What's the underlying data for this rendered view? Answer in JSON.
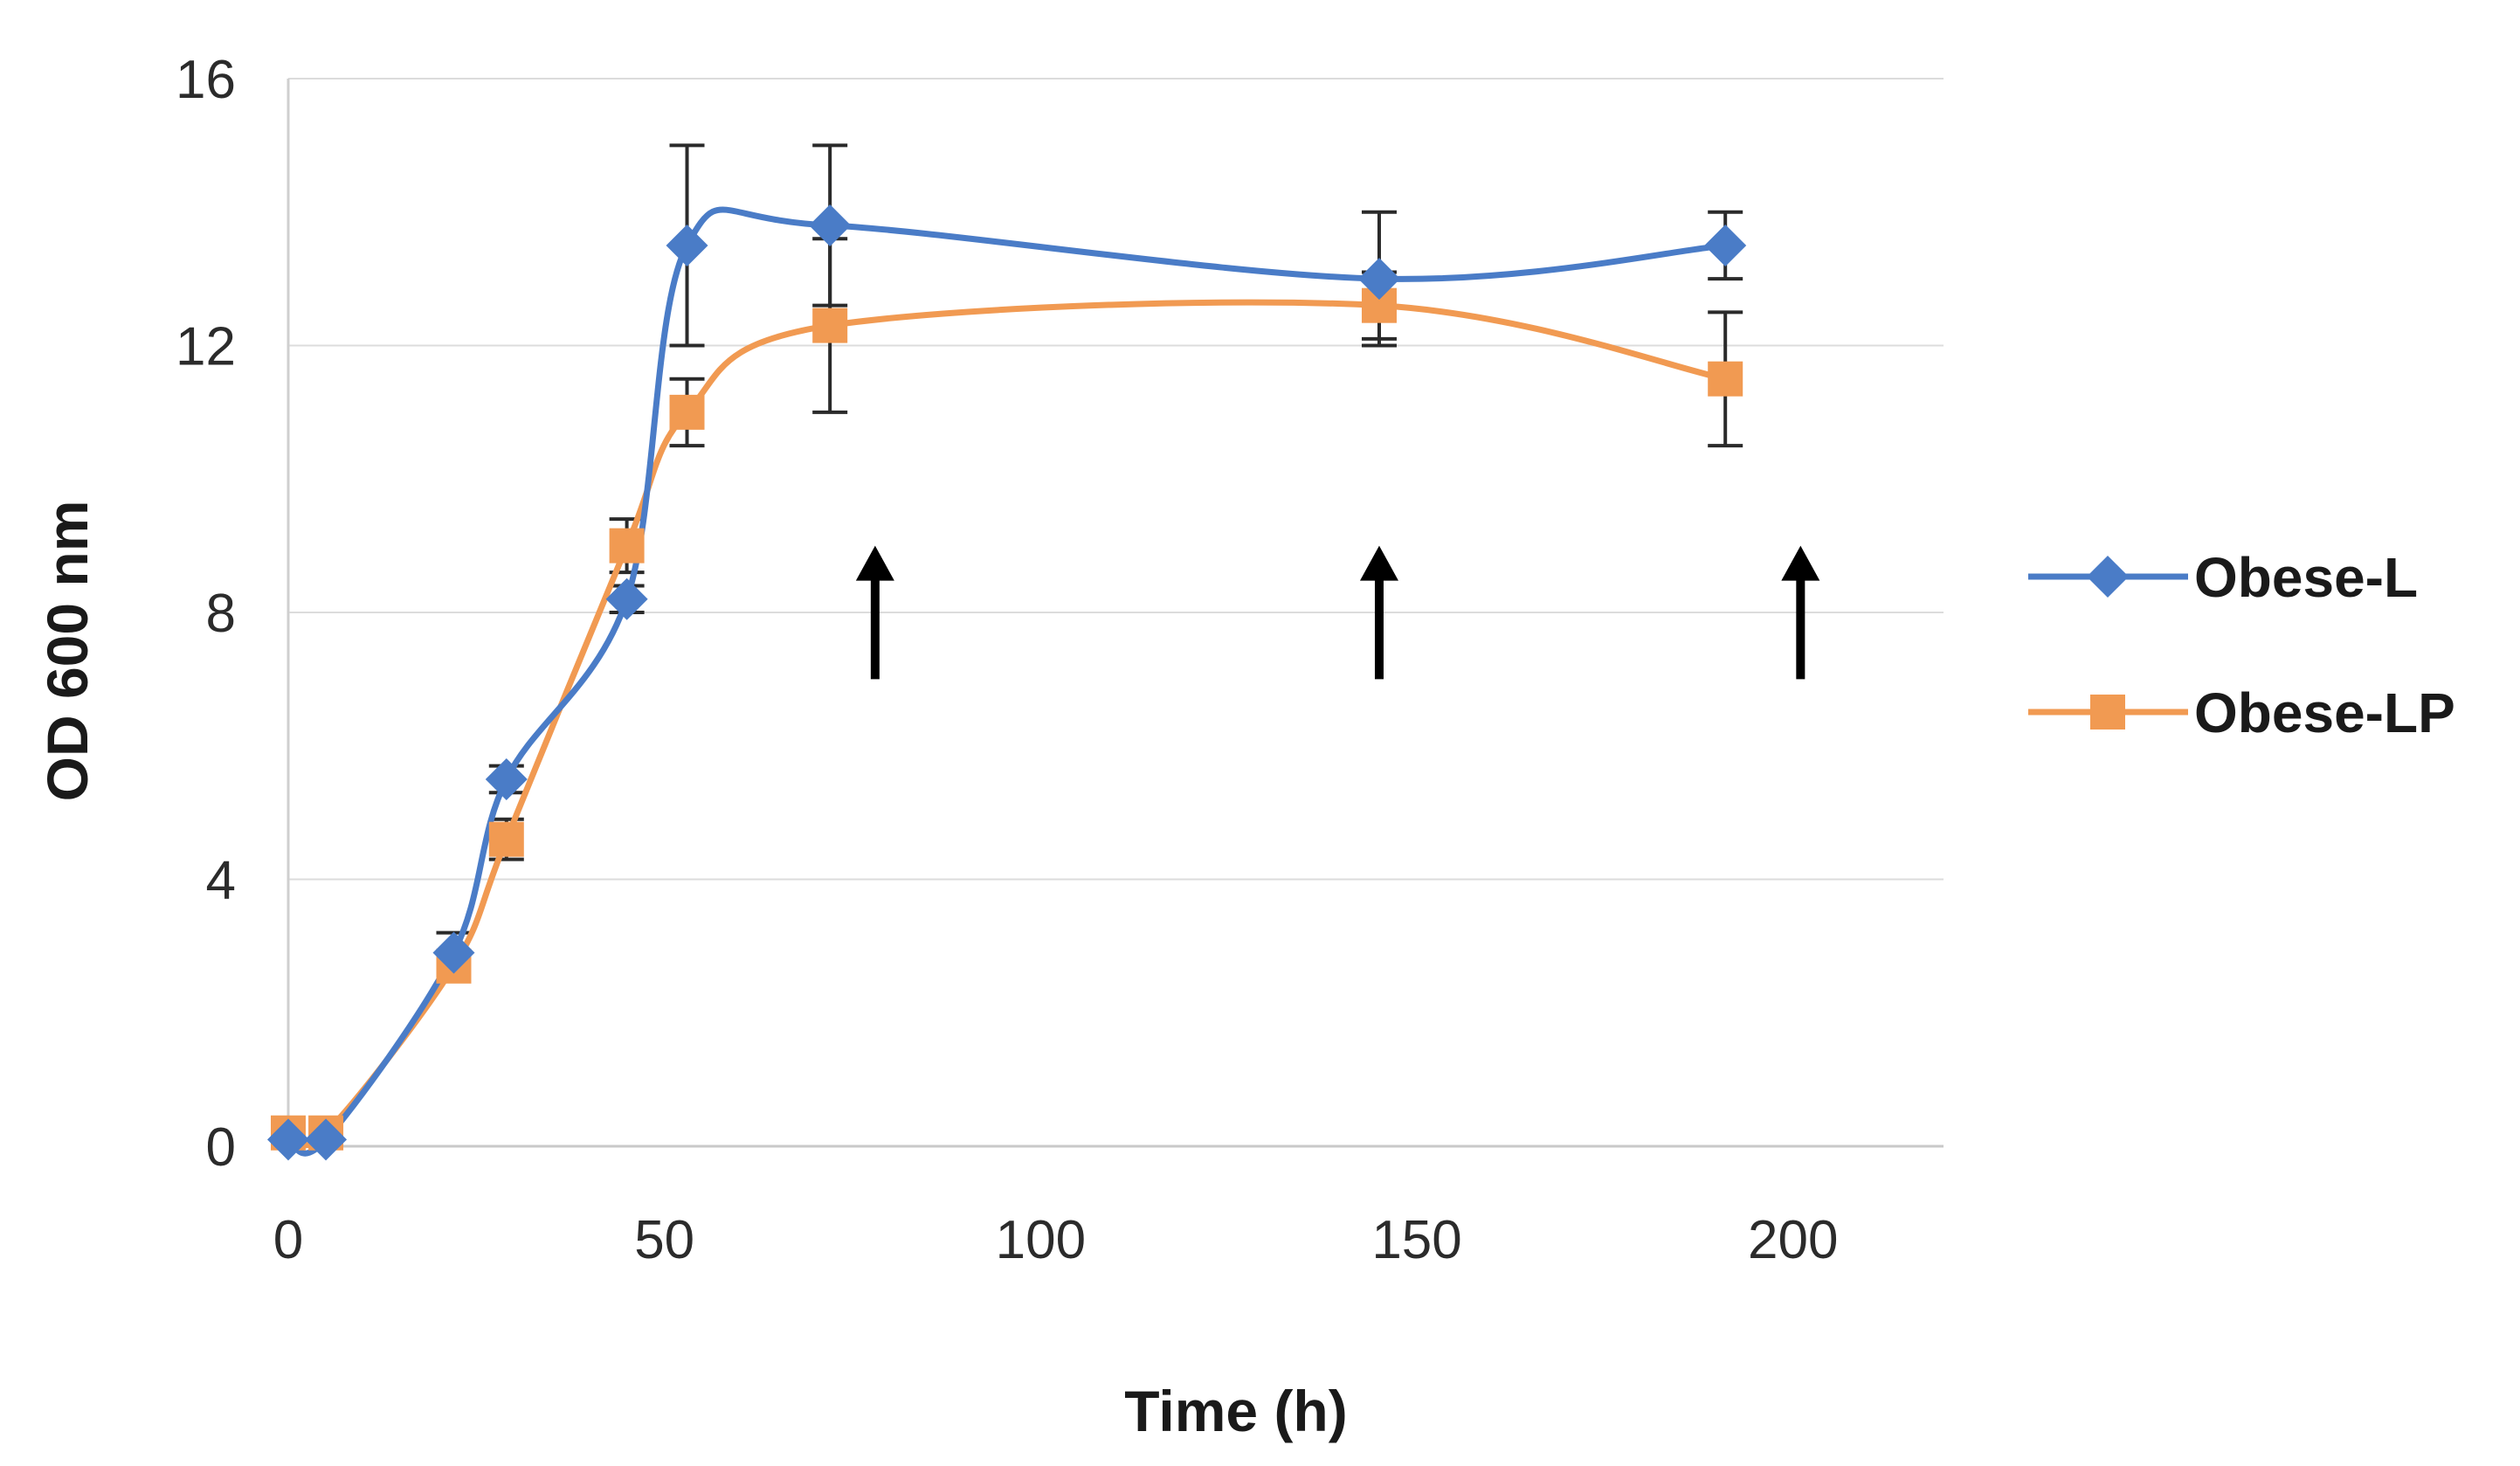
{
  "chart_data": {
    "type": "line",
    "title": "",
    "xlabel": "Time (h)",
    "ylabel": "OD 600 nm",
    "xlim": [
      0,
      220
    ],
    "ylim": [
      0,
      16
    ],
    "x_ticks": [
      0,
      50,
      100,
      150,
      200
    ],
    "y_ticks": [
      0,
      4,
      8,
      12,
      16
    ],
    "grid": true,
    "smooth": true,
    "legend_position": "right",
    "series": [
      {
        "name": "Obese-L",
        "color": "#4a7cc7",
        "marker": "diamond",
        "x": [
          0,
          5,
          22,
          29,
          45,
          53,
          72,
          145,
          191
        ],
        "y": [
          0.1,
          0.1,
          2.9,
          5.5,
          8.2,
          13.5,
          13.8,
          13.0,
          13.5
        ],
        "error": [
          0,
          0,
          0.3,
          0.2,
          0.2,
          1.5,
          1.2,
          1.0,
          0.5
        ]
      },
      {
        "name": "Obese-LP",
        "color": "#f19a52",
        "marker": "square",
        "x": [
          0,
          5,
          22,
          29,
          45,
          53,
          72,
          145,
          191
        ],
        "y": [
          0.2,
          0.2,
          2.7,
          4.6,
          9.0,
          11.0,
          12.3,
          12.6,
          11.5
        ],
        "error": [
          0,
          0,
          0.2,
          0.3,
          0.4,
          0.5,
          1.3,
          0.5,
          1.0
        ]
      }
    ],
    "annotations": [
      {
        "type": "arrow",
        "x": 78,
        "y_from": 7,
        "y_to": 9
      },
      {
        "type": "arrow",
        "x": 145,
        "y_from": 7,
        "y_to": 9
      },
      {
        "type": "arrow",
        "x": 201,
        "y_from": 7,
        "y_to": 9
      }
    ]
  }
}
